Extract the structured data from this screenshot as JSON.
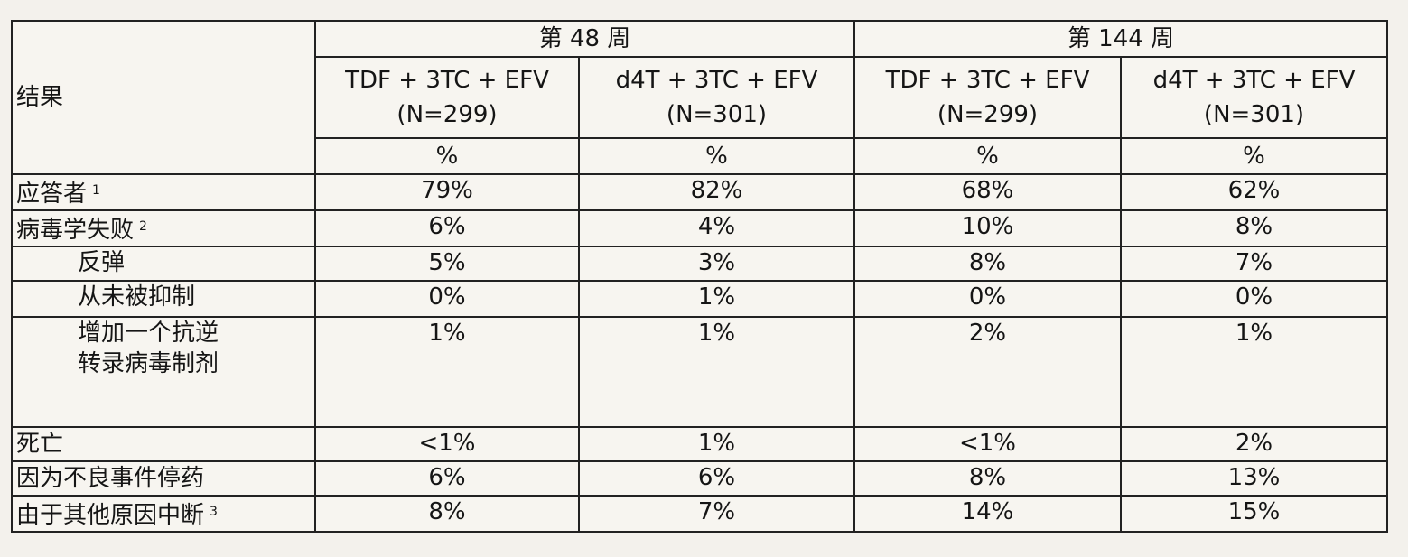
{
  "table": {
    "header": {
      "result_label": "结果",
      "groups": [
        "第 48 周",
        "第 144 周"
      ],
      "arms": [
        {
          "name": "TDF + 3TC + EFV",
          "n": "(N=299)"
        },
        {
          "name": "d4T + 3TC + EFV",
          "n": "(N=301)"
        },
        {
          "name": "TDF + 3TC + EFV",
          "n": "(N=299)"
        },
        {
          "name": "d4T + 3TC + EFV",
          "n": "(N=301)"
        }
      ],
      "units": [
        "%",
        "%",
        "%",
        "%"
      ]
    },
    "rows": [
      {
        "label": "应答者",
        "note": "1",
        "values": [
          "79%",
          "82%",
          "68%",
          "62%"
        ]
      },
      {
        "label": "病毒学失败",
        "note": "2",
        "values": [
          "6%",
          "4%",
          "10%",
          "8%"
        ],
        "children": [
          {
            "label": "反弹",
            "values": [
              "5%",
              "3%",
              "8%",
              "7%"
            ]
          },
          {
            "label": "从未被抑制",
            "values": [
              "0%",
              "1%",
              "0%",
              "0%"
            ]
          },
          {
            "label": "增加一个抗逆转录病毒制剂",
            "values": [
              "1%",
              "1%",
              "2%",
              "1%"
            ]
          }
        ]
      },
      {
        "label": "死亡",
        "values": [
          "<1%",
          "1%",
          "<1%",
          "2%"
        ]
      },
      {
        "label": "因为不良事件停药",
        "values": [
          "6%",
          "6%",
          "8%",
          "13%"
        ]
      },
      {
        "label": "由于其他原因中断",
        "note": "3",
        "values": [
          "8%",
          "7%",
          "14%",
          "15%"
        ]
      }
    ]
  }
}
